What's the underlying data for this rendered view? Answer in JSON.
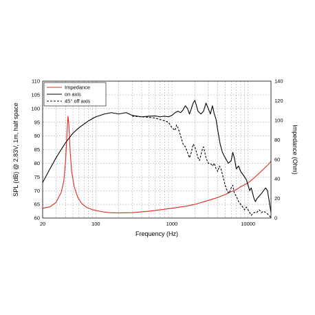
{
  "chart_data": {
    "type": "line",
    "xlabel": "Frequency (Hz)",
    "ylabel_left": "SPL (dB) @ 2.83V, 1m, half space",
    "ylabel_right": "Impedance (Ohm)",
    "x_scale": "log",
    "xlim": [
      20,
      20000
    ],
    "ylim_left": [
      60,
      110
    ],
    "ylim_right": [
      0,
      140
    ],
    "x_ticks": [
      "20",
      "100",
      "1000",
      "10000"
    ],
    "x_tick_values": [
      20,
      100,
      1000,
      10000
    ],
    "y_ticks_left": [
      "60",
      "65",
      "70",
      "75",
      "80",
      "85",
      "90",
      "95",
      "100",
      "105",
      "110"
    ],
    "y_tick_values_left": [
      60,
      65,
      70,
      75,
      80,
      85,
      90,
      95,
      100,
      105,
      110
    ],
    "y_ticks_right": [
      "0",
      "20",
      "40",
      "60",
      "80",
      "100",
      "120",
      "140"
    ],
    "y_tick_values_right": [
      0,
      20,
      40,
      60,
      80,
      100,
      120,
      140
    ],
    "grid": true,
    "legend_position": "top-left",
    "series": [
      {
        "name": "Impedance",
        "axis": "right",
        "color": "#e0281e",
        "style": "solid",
        "points": [
          [
            20,
            10
          ],
          [
            25,
            11.5
          ],
          [
            30,
            16
          ],
          [
            35,
            26
          ],
          [
            38,
            38
          ],
          [
            40,
            58
          ],
          [
            42,
            90
          ],
          [
            43,
            104
          ],
          [
            44,
            98
          ],
          [
            46,
            68
          ],
          [
            48,
            48
          ],
          [
            52,
            32
          ],
          [
            58,
            21
          ],
          [
            65,
            15
          ],
          [
            75,
            11
          ],
          [
            90,
            8.5
          ],
          [
            120,
            6.5
          ],
          [
            150,
            5.5
          ],
          [
            200,
            5.2
          ],
          [
            300,
            5.5
          ],
          [
            500,
            7
          ],
          [
            800,
            9
          ],
          [
            1000,
            10
          ],
          [
            1500,
            12
          ],
          [
            2000,
            14
          ],
          [
            3000,
            18
          ],
          [
            4000,
            21
          ],
          [
            5000,
            24
          ],
          [
            6000,
            27
          ],
          [
            7000,
            29
          ],
          [
            8000,
            32
          ],
          [
            10000,
            36
          ],
          [
            12000,
            41
          ],
          [
            15000,
            48
          ],
          [
            18000,
            54
          ],
          [
            20000,
            58
          ]
        ]
      },
      {
        "name": "on axis",
        "axis": "left",
        "color": "#000000",
        "style": "solid",
        "points": [
          [
            20,
            73
          ],
          [
            25,
            78
          ],
          [
            30,
            82
          ],
          [
            35,
            85
          ],
          [
            40,
            87.5
          ],
          [
            50,
            91
          ],
          [
            60,
            93
          ],
          [
            80,
            95.5
          ],
          [
            100,
            97
          ],
          [
            130,
            98
          ],
          [
            160,
            98.5
          ],
          [
            200,
            98
          ],
          [
            250,
            98.5
          ],
          [
            300,
            97.5
          ],
          [
            400,
            97
          ],
          [
            500,
            97.2
          ],
          [
            600,
            97.3
          ],
          [
            700,
            97
          ],
          [
            800,
            97.2
          ],
          [
            900,
            97
          ],
          [
            1000,
            97.5
          ],
          [
            1100,
            98.5
          ],
          [
            1200,
            99
          ],
          [
            1300,
            98.5
          ],
          [
            1400,
            99.5
          ],
          [
            1500,
            101
          ],
          [
            1600,
            100
          ],
          [
            1700,
            98
          ],
          [
            1800,
            100
          ],
          [
            1900,
            102
          ],
          [
            2000,
            103
          ],
          [
            2100,
            101
          ],
          [
            2200,
            99
          ],
          [
            2400,
            98
          ],
          [
            2600,
            99
          ],
          [
            2800,
            102
          ],
          [
            3000,
            100
          ],
          [
            3200,
            98
          ],
          [
            3400,
            101
          ],
          [
            3600,
            98
          ],
          [
            3800,
            96
          ],
          [
            4000,
            92
          ],
          [
            4300,
            87
          ],
          [
            4600,
            84
          ],
          [
            5000,
            82
          ],
          [
            5500,
            80
          ],
          [
            6000,
            81
          ],
          [
            6300,
            84
          ],
          [
            6600,
            82
          ],
          [
            7000,
            78
          ],
          [
            7500,
            79
          ],
          [
            8000,
            77
          ],
          [
            8500,
            76
          ],
          [
            9000,
            75
          ],
          [
            9500,
            74
          ],
          [
            10000,
            72
          ],
          [
            10500,
            70
          ],
          [
            11000,
            71
          ],
          [
            11500,
            69
          ],
          [
            12000,
            67
          ],
          [
            12500,
            66
          ],
          [
            13000,
            67
          ],
          [
            14000,
            68
          ],
          [
            15000,
            69
          ],
          [
            16000,
            70
          ],
          [
            17000,
            71
          ],
          [
            18000,
            70
          ],
          [
            19000,
            66
          ],
          [
            20000,
            62
          ]
        ]
      },
      {
        "name": "45° off axis",
        "axis": "left",
        "color": "#000000",
        "style": "dashed",
        "points": [
          [
            300,
            97.2
          ],
          [
            400,
            97
          ],
          [
            500,
            96.8
          ],
          [
            600,
            96.5
          ],
          [
            700,
            96
          ],
          [
            800,
            95.5
          ],
          [
            900,
            95
          ],
          [
            1000,
            93
          ],
          [
            1100,
            92
          ],
          [
            1150,
            94
          ],
          [
            1200,
            93
          ],
          [
            1300,
            90
          ],
          [
            1400,
            87
          ],
          [
            1500,
            86
          ],
          [
            1600,
            84
          ],
          [
            1700,
            82
          ],
          [
            1800,
            84
          ],
          [
            1900,
            87
          ],
          [
            2000,
            86
          ],
          [
            2100,
            84
          ],
          [
            2200,
            82
          ],
          [
            2300,
            81
          ],
          [
            2400,
            83
          ],
          [
            2500,
            85
          ],
          [
            2600,
            86
          ],
          [
            2700,
            84
          ],
          [
            2800,
            82
          ],
          [
            2900,
            81
          ],
          [
            3000,
            80
          ],
          [
            3200,
            80
          ],
          [
            3400,
            79
          ],
          [
            3600,
            80
          ],
          [
            3800,
            78
          ],
          [
            4000,
            77
          ],
          [
            4200,
            79
          ],
          [
            4400,
            78
          ],
          [
            4600,
            76
          ],
          [
            4800,
            74
          ],
          [
            5000,
            72
          ],
          [
            5300,
            70
          ],
          [
            5600,
            69
          ],
          [
            6000,
            71
          ],
          [
            6300,
            72
          ],
          [
            6600,
            69
          ],
          [
            7000,
            68
          ],
          [
            7500,
            66
          ],
          [
            8000,
            65
          ],
          [
            8500,
            64
          ],
          [
            9000,
            63
          ],
          [
            9500,
            64
          ],
          [
            10000,
            63
          ],
          [
            11000,
            61
          ],
          [
            12000,
            62
          ],
          [
            13000,
            62
          ],
          [
            14000,
            63
          ],
          [
            15000,
            62
          ],
          [
            16000,
            62.5
          ],
          [
            17000,
            62
          ],
          [
            18000,
            61.5
          ],
          [
            19000,
            61
          ],
          [
            20000,
            60
          ]
        ]
      }
    ]
  }
}
